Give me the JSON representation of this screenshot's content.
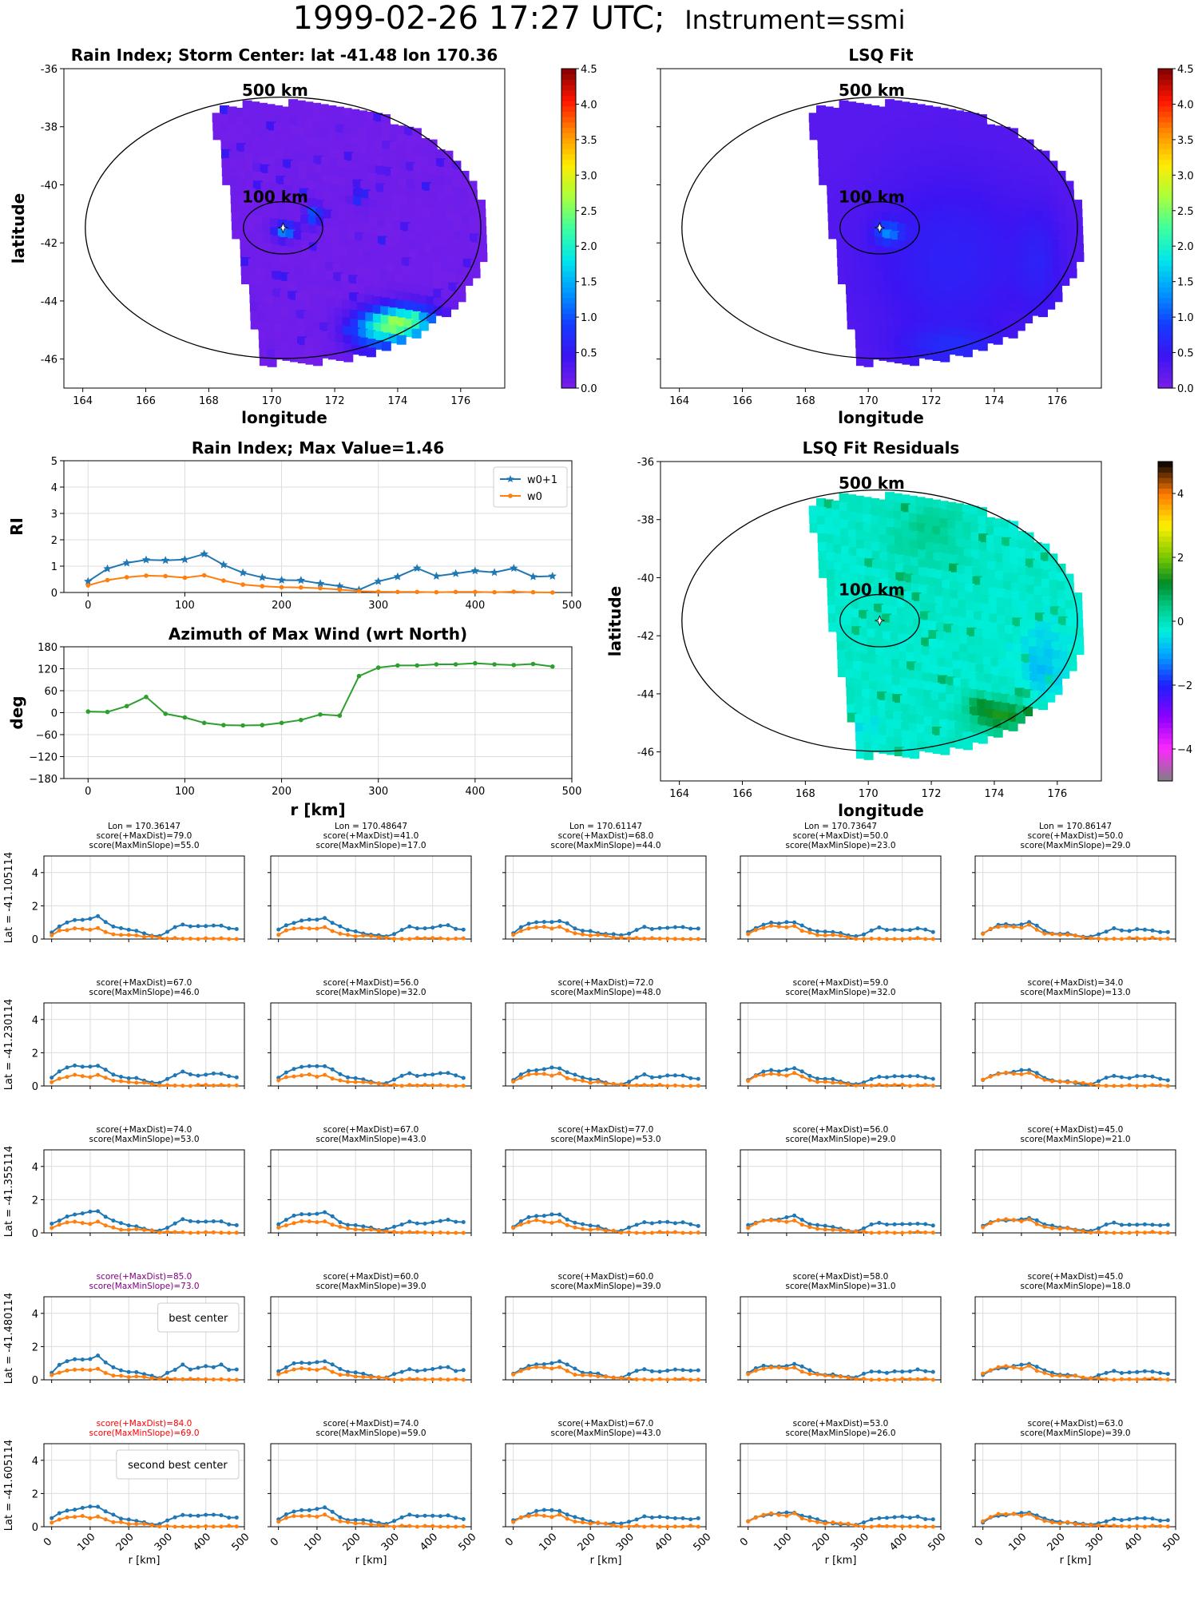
{
  "page": {
    "title_main": "1999-02-26 17:27 UTC;",
    "title_instrument": "Instrument=ssmi"
  },
  "maps": {
    "rain_index": {
      "title": "Rain Index; Storm Center: lat -41.48 lon 170.36",
      "xlabel": "longitude",
      "ylabel": "latitude",
      "xticks": [
        "164",
        "166",
        "168",
        "170",
        "172",
        "174",
        "176"
      ],
      "yticks": [
        "-36",
        "-38",
        "-40",
        "-42",
        "-44",
        "-46"
      ],
      "ring_outer_label": "500 km",
      "ring_inner_label": "100 km",
      "colorbar_ticks": [
        "0.0",
        "0.5",
        "1.0",
        "1.5",
        "2.0",
        "2.5",
        "3.0",
        "3.5",
        "4.0",
        "4.5"
      ]
    },
    "lsq_fit": {
      "title": "LSQ Fit",
      "xlabel": "longitude",
      "xticks": [
        "164",
        "166",
        "168",
        "170",
        "172",
        "174",
        "176"
      ],
      "ring_outer_label": "500 km",
      "ring_inner_label": "100 km",
      "colorbar_ticks": [
        "0.0",
        "0.5",
        "1.0",
        "1.5",
        "2.0",
        "2.5",
        "3.0",
        "3.5",
        "4.0",
        "4.5"
      ]
    },
    "residuals": {
      "title": "LSQ Fit Residuals",
      "xlabel": "longitude",
      "ylabel": "latitude",
      "xticks": [
        "164",
        "166",
        "168",
        "170",
        "172",
        "174",
        "176"
      ],
      "yticks": [
        "-36",
        "-38",
        "-40",
        "-42",
        "-44",
        "-46"
      ],
      "ring_outer_label": "500 km",
      "ring_inner_label": "100 km",
      "colorbar_ticks": [
        "−4",
        "−2",
        "0",
        "2",
        "4"
      ]
    }
  },
  "colors": {
    "w0p1": "#1f77b4",
    "w0": "#ff7f0e",
    "azimuth": "#2ca02c",
    "highlight_purple": "#800080",
    "highlight_red": "#ff0000",
    "background": "#7b1fe8"
  },
  "chart_data": [
    {
      "type": "line",
      "title": "Rain Index; Max Value=1.46",
      "xlabel": "",
      "ylabel": "RI",
      "xticks": [
        "0",
        "100",
        "200",
        "300",
        "400",
        "500"
      ],
      "yticks": [
        "0",
        "1",
        "2",
        "3",
        "4",
        "5"
      ],
      "xlim": [
        -25,
        500
      ],
      "ylim": [
        0,
        5
      ],
      "legend": "top-right",
      "x": [
        0,
        20,
        40,
        60,
        80,
        100,
        120,
        140,
        160,
        180,
        200,
        220,
        240,
        260,
        280,
        300,
        320,
        340,
        360,
        380,
        400,
        420,
        440,
        460,
        480
      ],
      "series": [
        {
          "name": "w0+1",
          "values": [
            0.42,
            0.9,
            1.12,
            1.24,
            1.22,
            1.25,
            1.46,
            1.05,
            0.75,
            0.57,
            0.47,
            0.46,
            0.34,
            0.24,
            0.1,
            0.42,
            0.6,
            0.92,
            0.62,
            0.72,
            0.82,
            0.76,
            0.92,
            0.6,
            0.62
          ]
        },
        {
          "name": "w0",
          "values": [
            0.27,
            0.47,
            0.58,
            0.64,
            0.62,
            0.56,
            0.65,
            0.45,
            0.3,
            0.24,
            0.2,
            0.19,
            0.16,
            0.11,
            0.05,
            0.03,
            0.02,
            0.02,
            0.01,
            0.02,
            0.02,
            0.01,
            0.03,
            0.01,
            0.0
          ]
        }
      ]
    },
    {
      "type": "line",
      "title": "Azimuth of Max Wind (wrt North)",
      "xlabel": "r [km]",
      "ylabel": "deg",
      "xticks": [
        "0",
        "100",
        "200",
        "300",
        "400",
        "500"
      ],
      "yticks": [
        "180",
        "120",
        "60",
        "0",
        "−60",
        "−120",
        "−180"
      ],
      "xlim": [
        -25,
        500
      ],
      "ylim": [
        -180,
        180
      ],
      "x": [
        0,
        20,
        40,
        60,
        80,
        100,
        120,
        140,
        160,
        180,
        200,
        220,
        240,
        260,
        280,
        300,
        320,
        340,
        360,
        380,
        400,
        420,
        440,
        460,
        480
      ],
      "series": [
        {
          "values": [
            3,
            2,
            18,
            43,
            -3,
            -13,
            -28,
            -34,
            -35,
            -34,
            -28,
            -20,
            -5,
            -8,
            100,
            123,
            129,
            129,
            132,
            132,
            135,
            132,
            130,
            133,
            126
          ]
        }
      ]
    },
    {
      "type": "line",
      "grid_rows": 5,
      "grid_cols": 5,
      "xlabel": "r [km]",
      "xticks": [
        "0",
        "100",
        "200",
        "300",
        "400",
        "500"
      ],
      "yticks": [
        "0",
        "2",
        "4"
      ],
      "xlim": [
        -20,
        500
      ],
      "ylim": [
        0,
        5
      ],
      "x": [
        0,
        20,
        40,
        60,
        80,
        100,
        120,
        140,
        160,
        180,
        200,
        220,
        240,
        260,
        280,
        300,
        320,
        340,
        360,
        380,
        400,
        420,
        440,
        460,
        480
      ],
      "row_labels": [
        "Lat = -41.105114",
        "Lat = -41.230114",
        "Lat = -41.355114",
        "Lat = -41.480114",
        "Lat = -41.605114"
      ],
      "col_headers": [
        "Lon = 170.36147",
        "Lon = 170.48647",
        "Lon = 170.61147",
        "Lon = 170.73647",
        "Lon = 170.86147"
      ],
      "panels": [
        [
          {
            "t1": "score(+MaxDist)=79.0",
            "t2": "score(MaxMinSlope)=55.0",
            "tone": "normal"
          },
          {
            "t1": "score(+MaxDist)=41.0",
            "t2": "score(MaxMinSlope)=17.0",
            "tone": "normal"
          },
          {
            "t1": "score(+MaxDist)=68.0",
            "t2": "score(MaxMinSlope)=44.0",
            "tone": "normal"
          },
          {
            "t1": "score(+MaxDist)=50.0",
            "t2": "score(MaxMinSlope)=23.0",
            "tone": "normal"
          },
          {
            "t1": "score(+MaxDist)=50.0",
            "t2": "score(MaxMinSlope)=29.0",
            "tone": "normal"
          }
        ],
        [
          {
            "t1": "score(+MaxDist)=67.0",
            "t2": "score(MaxMinSlope)=46.0",
            "tone": "normal"
          },
          {
            "t1": "score(+MaxDist)=56.0",
            "t2": "score(MaxMinSlope)=32.0",
            "tone": "normal"
          },
          {
            "t1": "score(+MaxDist)=72.0",
            "t2": "score(MaxMinSlope)=48.0",
            "tone": "normal"
          },
          {
            "t1": "score(+MaxDist)=59.0",
            "t2": "score(MaxMinSlope)=32.0",
            "tone": "normal"
          },
          {
            "t1": "score(+MaxDist)=34.0",
            "t2": "score(MaxMinSlope)=13.0",
            "tone": "normal"
          }
        ],
        [
          {
            "t1": "score(+MaxDist)=74.0",
            "t2": "score(MaxMinSlope)=53.0",
            "tone": "normal"
          },
          {
            "t1": "score(+MaxDist)=67.0",
            "t2": "score(MaxMinSlope)=43.0",
            "tone": "normal"
          },
          {
            "t1": "score(+MaxDist)=77.0",
            "t2": "score(MaxMinSlope)=53.0",
            "tone": "normal"
          },
          {
            "t1": "score(+MaxDist)=56.0",
            "t2": "score(MaxMinSlope)=29.0",
            "tone": "normal"
          },
          {
            "t1": "score(+MaxDist)=45.0",
            "t2": "score(MaxMinSlope)=21.0",
            "tone": "normal"
          }
        ],
        [
          {
            "t1": "score(+MaxDist)=85.0",
            "t2": "score(MaxMinSlope)=73.0",
            "tone": "best",
            "legend": "best center"
          },
          {
            "t1": "score(+MaxDist)=60.0",
            "t2": "score(MaxMinSlope)=39.0",
            "tone": "normal"
          },
          {
            "t1": "score(+MaxDist)=60.0",
            "t2": "score(MaxMinSlope)=39.0",
            "tone": "normal"
          },
          {
            "t1": "score(+MaxDist)=58.0",
            "t2": "score(MaxMinSlope)=31.0",
            "tone": "normal"
          },
          {
            "t1": "score(+MaxDist)=45.0",
            "t2": "score(MaxMinSlope)=18.0",
            "tone": "normal"
          }
        ],
        [
          {
            "t1": "score(+MaxDist)=84.0",
            "t2": "score(MaxMinSlope)=69.0",
            "tone": "second",
            "legend": "second best center"
          },
          {
            "t1": "score(+MaxDist)=74.0",
            "t2": "score(MaxMinSlope)=59.0",
            "tone": "normal"
          },
          {
            "t1": "score(+MaxDist)=67.0",
            "t2": "score(MaxMinSlope)=43.0",
            "tone": "normal"
          },
          {
            "t1": "score(+MaxDist)=53.0",
            "t2": "score(MaxMinSlope)=26.0",
            "tone": "normal"
          },
          {
            "t1": "score(+MaxDist)=63.0",
            "t2": "score(MaxMinSlope)=39.0",
            "tone": "normal"
          }
        ]
      ]
    }
  ]
}
